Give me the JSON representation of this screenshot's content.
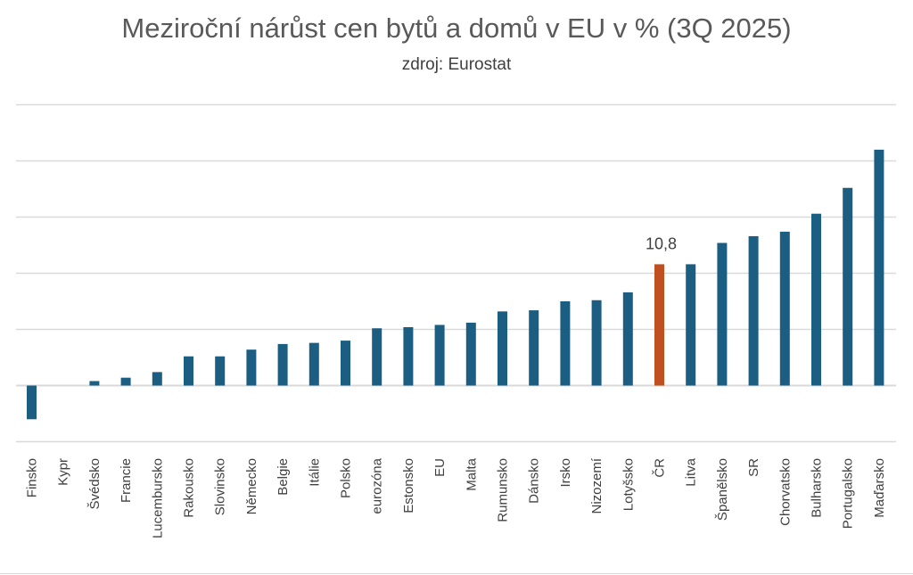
{
  "chart_data": {
    "type": "bar",
    "title": "Meziroční nárůst cen bytů a domů v EU v % (3Q 2025)",
    "subtitle": "zdroj: Eurostat",
    "xlabel": "",
    "ylabel": "",
    "ylim": [
      -5,
      25
    ],
    "ytick_step": 5,
    "grid": true,
    "categories": [
      "Finsko",
      "Kypr",
      "Švédsko",
      "Francie",
      "Lucembursko",
      "Rakousko",
      "Slovinsko",
      "Německo",
      "Belgie",
      "Itálie",
      "Polsko",
      "eurozóna",
      "Estonsko",
      "EU",
      "Malta",
      "Rumunsko",
      "Dánsko",
      "Irsko",
      "Nizozemí",
      "Lotyšsko",
      "ČR",
      "Litva",
      "Španělsko",
      "SR",
      "Chorvatsko",
      "Bulharsko",
      "Portugalsko",
      "Maďarsko"
    ],
    "values": [
      -3.0,
      0.0,
      0.4,
      0.7,
      1.2,
      2.6,
      2.6,
      3.2,
      3.7,
      3.8,
      4.0,
      5.1,
      5.2,
      5.4,
      5.6,
      6.6,
      6.7,
      7.5,
      7.6,
      8.3,
      10.8,
      10.8,
      12.7,
      13.3,
      13.7,
      15.3,
      17.6,
      21.0
    ],
    "highlight": {
      "category": "ČR",
      "label": "10,8"
    },
    "colors": {
      "bar": "#1b5e82",
      "highlight": "#c0501f",
      "grid": "#d9d9d9"
    }
  }
}
